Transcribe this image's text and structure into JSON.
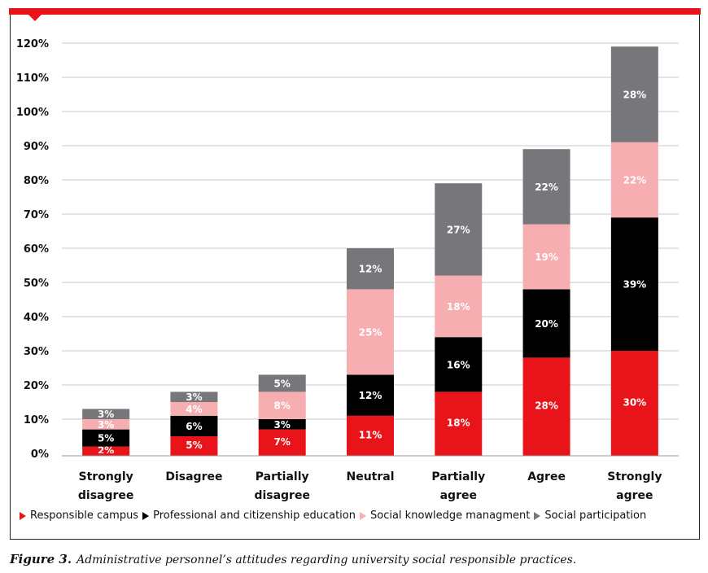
{
  "chart_data": {
    "type": "bar",
    "stacked": true,
    "categories": [
      [
        "Strongly",
        "disagree"
      ],
      [
        "Disagree"
      ],
      [
        "Partially",
        "disagree"
      ],
      [
        "Neutral"
      ],
      [
        "Partially",
        "agree"
      ],
      [
        "Agree"
      ],
      [
        "Strongly",
        "agree"
      ]
    ],
    "series": [
      {
        "name": "Responsible campus",
        "color": "#e8141a",
        "label_color": "#ffffff",
        "values": [
          2,
          5,
          7,
          11,
          18,
          28,
          30
        ]
      },
      {
        "name": "Professional and citizenship education",
        "color": "#000000",
        "label_color": "#ffffff",
        "values": [
          5,
          6,
          3,
          12,
          16,
          20,
          39
        ]
      },
      {
        "name": "Social knowledge managment",
        "color": "#f7aeb0",
        "label_color": "#ffffff",
        "values": [
          3,
          4,
          8,
          25,
          18,
          19,
          22
        ]
      },
      {
        "name": "Social participation",
        "color": "#77777b",
        "label_color": "#ffffff",
        "values": [
          3,
          3,
          5,
          12,
          27,
          22,
          28
        ]
      }
    ],
    "yticks": [
      "0%",
      "10%",
      "20%",
      "30%",
      "40%",
      "50%",
      "60%",
      "70%",
      "80%",
      "90%",
      "100%",
      "110%",
      "120%"
    ],
    "ylim": [
      0,
      120
    ],
    "value_suffix": "%",
    "legend_position": "bottom",
    "grid": true
  },
  "caption": {
    "label": "Figure 3.",
    "text": "Administrative personnel’s attitudes regarding university social responsible practices."
  },
  "colors": {
    "accent": "#e8141a",
    "grid": "#c8c8c8"
  }
}
